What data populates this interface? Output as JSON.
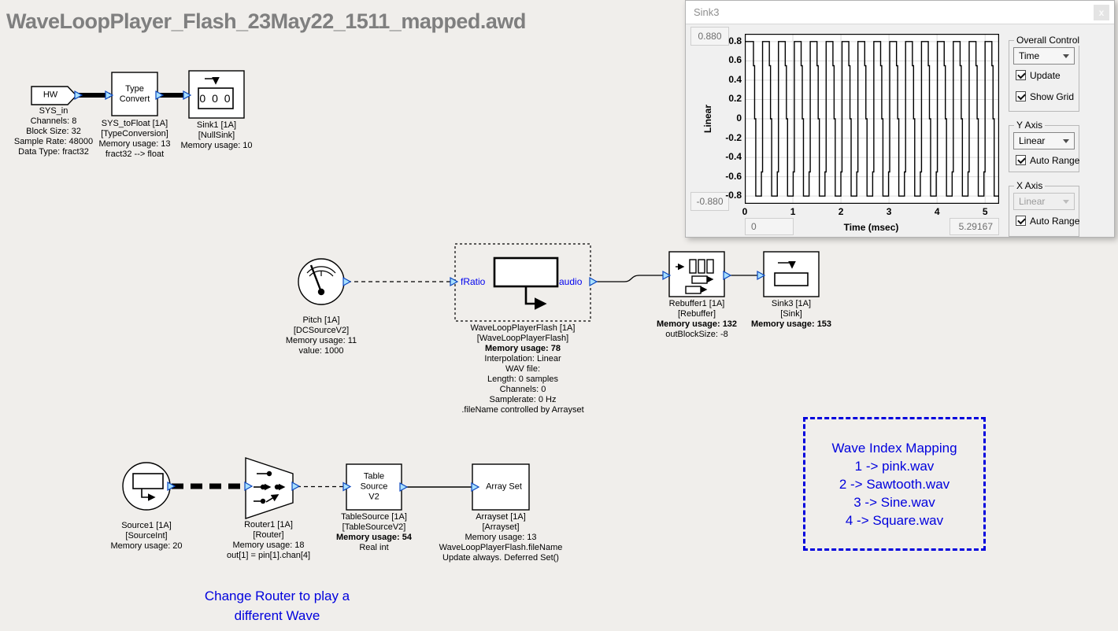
{
  "title": "WaveLoopPlayer_Flash_23May22_1511_mapped.awd",
  "annotations": {
    "wave_index_box": [
      "Wave Index Mapping",
      "1 -> pink.wav",
      "2 -> Sawtooth.wav",
      "3 -> Sine.wav",
      "4 -> Square.wav"
    ],
    "router_note": [
      "Change Router to play a",
      "different Wave"
    ]
  },
  "blocks": {
    "sys_in": {
      "icon_label": "HW",
      "caption": [
        "SYS_in",
        "Channels: 8",
        "Block Size: 32",
        "Sample Rate: 48000",
        "Data Type: fract32"
      ]
    },
    "type_convert": {
      "icon_label": "Type Convert",
      "caption": [
        "SYS_toFloat [1A]",
        "[TypeConversion]",
        "Memory usage: 13",
        "fract32 --> float"
      ]
    },
    "sink1": {
      "counter": "0 0 0",
      "caption": [
        "Sink1 [1A]",
        "[NullSink]",
        "Memory usage: 10"
      ]
    },
    "pitch": {
      "caption": [
        "Pitch [1A]",
        "[DCSourceV2]",
        "Memory usage: 11",
        "value: 1000"
      ]
    },
    "wave_loop_player": {
      "port_in": "fRatio",
      "port_out": "audio",
      "caption": [
        "WaveLoopPlayerFlash [1A]",
        "[WaveLoopPlayerFlash]",
        "Memory usage: 78",
        "Interpolation: Linear",
        "WAV file:",
        "Length: 0 samples",
        "Channels: 0",
        "Samplerate: 0 Hz",
        ".fileName controlled by Arrayset"
      ]
    },
    "rebuffer1": {
      "caption": [
        "Rebuffer1 [1A]",
        "[Rebuffer]",
        "Memory usage: 132",
        "outBlockSize: -8"
      ]
    },
    "sink3": {
      "caption": [
        "Sink3 [1A]",
        "[Sink]",
        "Memory usage: 153"
      ]
    },
    "source1": {
      "caption": [
        "Source1 [1A]",
        "[SourceInt]",
        "Memory usage: 20"
      ]
    },
    "router1": {
      "caption": [
        "Router1 [1A]",
        "[Router]",
        "Memory usage: 18",
        "out[1] = pin[1].chan[4]"
      ]
    },
    "table_source": {
      "icon_label": "Table Source V2",
      "caption": [
        "TableSource [1A]",
        "[TableSourceV2]",
        "Memory usage: 54",
        "Real int"
      ]
    },
    "array_set": {
      "icon_label": "Array Set",
      "caption": [
        "Arrayset [1A]",
        "[Arrayset]",
        "Memory usage: 13",
        "WaveLoopPlayerFlash.fileName",
        "Update always. Deferred Set()"
      ]
    }
  },
  "scope": {
    "window_title": "Sink3",
    "close_label": "x",
    "y_max_box": "0.880",
    "y_min_box": "-0.880",
    "x_min_box": "0",
    "x_max_box": "5.29167",
    "y_scale_label": "Linear",
    "groups": {
      "overall": {
        "label": "Overall Control",
        "dropdown": "Time",
        "checkbox1": "Update",
        "checkbox2": "Show Grid"
      },
      "y_axis": {
        "label": "Y Axis",
        "dropdown": "Linear",
        "checkbox": "Auto Range"
      },
      "x_axis": {
        "label": "X Axis",
        "dropdown": "Linear",
        "checkbox": "Auto Range"
      }
    }
  },
  "chart_data": {
    "type": "line",
    "title": "Sink3 time-domain scope",
    "xlabel": "Time (msec)",
    "ylabel": "Linear",
    "xlim": [
      0,
      5.29167
    ],
    "ylim": [
      -0.88,
      0.88
    ],
    "x_ticks": [
      0,
      1,
      2,
      3,
      4,
      5
    ],
    "y_ticks": [
      0.8,
      0.6,
      0.4,
      0.2,
      0,
      -0.2,
      -0.4,
      -0.6,
      -0.8
    ],
    "grid": true,
    "legend": false,
    "waveform": {
      "shape": "square",
      "cycles": 16,
      "period_msec": 0.33073,
      "first_fall_msec": 0.18,
      "high": 0.8,
      "low": -0.8,
      "transition_step": 0.55,
      "step_width_msec": 0.024
    }
  },
  "colors": {
    "annotation_blue": "#0000dd",
    "port_fill": "#a8e0ff",
    "port_stroke": "#0a46be",
    "title_gray": "#7f7f7f",
    "grid_gray": "#dcdcdc"
  }
}
